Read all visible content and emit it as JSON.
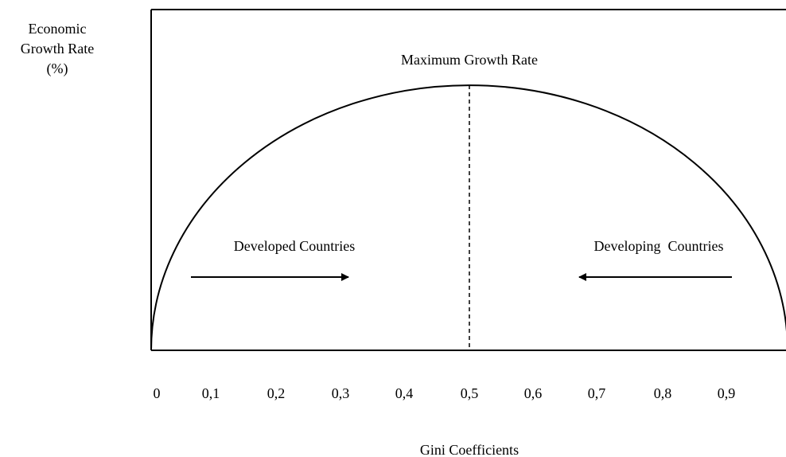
{
  "y_axis_label": [
    "Economic",
    "Growth Rate",
    "(%)"
  ],
  "x_axis_label": "Gini Coefficients",
  "x_tick_labels": [
    "0",
    "0,1",
    "0,2",
    "0,3",
    "0,4",
    "0,5",
    "0,6",
    "0,7",
    "0,8",
    "0,9"
  ],
  "annotations": {
    "peak": "Maximum Growth Rate",
    "left": "Developed Countries",
    "right": "Developing  Countries"
  }
}
